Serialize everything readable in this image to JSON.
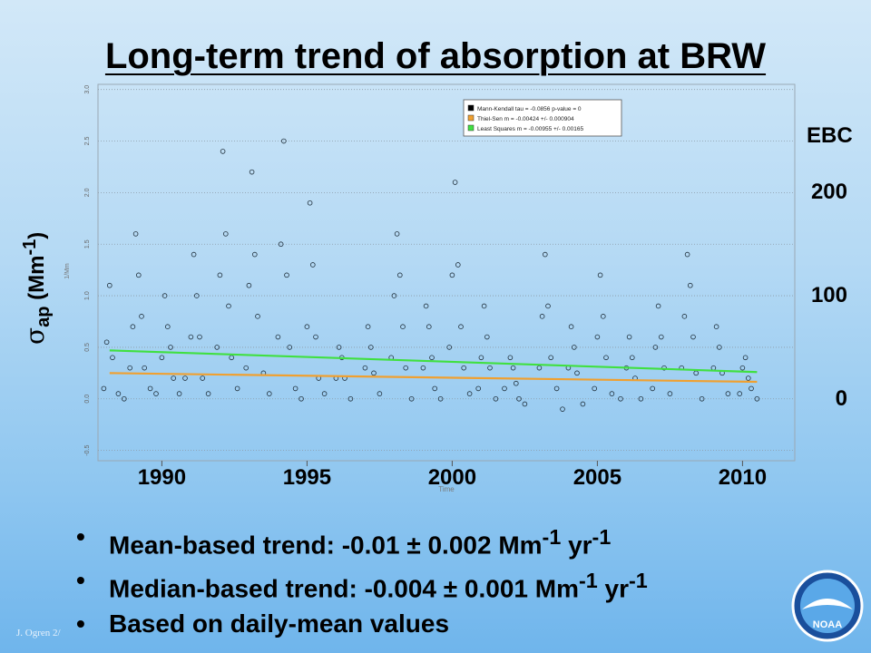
{
  "slide": {
    "title": "Long-term trend of absorption at BRW",
    "footer": "J. Ogren 2/",
    "bullets": [
      {
        "parts": [
          "Mean-based trend:  -0.01 ",
          "±",
          " 0.002 Mm",
          "-1",
          " yr",
          "-1"
        ]
      },
      {
        "parts": [
          "Median-based trend: -0.004 ",
          "±",
          " 0.001 Mm",
          "-1",
          " yr",
          "-1"
        ]
      },
      {
        "parts": [
          "Based on daily-mean values"
        ]
      }
    ],
    "logo_text": "NOAA"
  },
  "ylabel": {
    "symbol": "σ",
    "sub": "ap",
    "unit_open": " (Mm",
    "sup": "-1",
    "unit_close": ")"
  },
  "ebc_axis": {
    "title": "EBC",
    "ticks": [
      "200",
      "100",
      "0"
    ],
    "tick_values": [
      2.0,
      1.0,
      0.0
    ]
  },
  "chart_data": {
    "type": "scatter",
    "title": "",
    "xlabel": "Time",
    "ylabel": "1/Mm",
    "xlim": [
      1987.8,
      2011.8
    ],
    "ylim": [
      -0.6,
      3.05
    ],
    "x_ticks": [
      "1990",
      "1995",
      "2000",
      "2005",
      "2010"
    ],
    "x_tick_values": [
      1990,
      1995,
      2000,
      2005,
      2010
    ],
    "y_ticks": [
      "-0.5",
      "0.0",
      "0.5",
      "1.0",
      "1.5",
      "2.0",
      "2.5",
      "3.0"
    ],
    "y_tick_values": [
      -0.5,
      0.0,
      0.5,
      1.0,
      1.5,
      2.0,
      2.5,
      3.0
    ],
    "grid": true,
    "legend": {
      "position": "top-right",
      "entries": [
        {
          "label": "Mann-Kendall tau = -0.0856 p-value = 0",
          "color": "#000000"
        },
        {
          "label": "Thiel-Sen m = -0.00424 +/- 0.000904",
          "color": "#f0a030"
        },
        {
          "label": "Least Squares m = -0.00955 +/- 0.00165",
          "color": "#40e040"
        }
      ]
    },
    "trend_lines": [
      {
        "name": "Least Squares",
        "color": "#40e040",
        "x": [
          1988.2,
          2010.5
        ],
        "y": [
          0.47,
          0.26
        ]
      },
      {
        "name": "Thiel-Sen",
        "color": "#f0a030",
        "x": [
          1988.2,
          2010.5
        ],
        "y": [
          0.25,
          0.165
        ]
      }
    ],
    "series": [
      {
        "name": "daily-mean absorption",
        "marker": "open-circle",
        "color": "#1e2e3a",
        "x": [
          1988.0,
          1988.1,
          1988.2,
          1988.3,
          1988.5,
          1988.7,
          1988.9,
          1989.0,
          1989.1,
          1989.2,
          1989.3,
          1989.4,
          1989.6,
          1989.8,
          1990.0,
          1990.1,
          1990.2,
          1990.3,
          1990.4,
          1990.6,
          1990.8,
          1991.0,
          1991.1,
          1991.2,
          1991.3,
          1991.4,
          1991.6,
          1991.9,
          1992.0,
          1992.1,
          1992.2,
          1992.3,
          1992.4,
          1992.6,
          1992.9,
          1993.0,
          1993.1,
          1993.2,
          1993.3,
          1993.5,
          1993.7,
          1994.0,
          1994.1,
          1994.2,
          1994.3,
          1994.4,
          1994.6,
          1994.8,
          1995.0,
          1995.1,
          1995.2,
          1995.3,
          1995.4,
          1995.6,
          1996.0,
          1996.1,
          1996.2,
          1996.3,
          1996.5,
          1997.0,
          1997.1,
          1997.2,
          1997.3,
          1997.5,
          1997.9,
          1998.0,
          1998.1,
          1998.2,
          1998.3,
          1998.4,
          1998.6,
          1999.0,
          1999.1,
          1999.2,
          1999.3,
          1999.4,
          1999.6,
          1999.9,
          2000.0,
          2000.1,
          2000.2,
          2000.3,
          2000.4,
          2000.6,
          2000.9,
          2001.0,
          2001.1,
          2001.2,
          2001.3,
          2001.5,
          2001.8,
          2002.0,
          2002.1,
          2002.2,
          2002.3,
          2002.5,
          2003.0,
          2003.1,
          2003.2,
          2003.3,
          2003.4,
          2003.6,
          2003.8,
          2004.0,
          2004.1,
          2004.2,
          2004.3,
          2004.5,
          2004.9,
          2005.0,
          2005.1,
          2005.2,
          2005.3,
          2005.5,
          2005.8,
          2006.0,
          2006.1,
          2006.2,
          2006.3,
          2006.5,
          2006.9,
          2007.0,
          2007.1,
          2007.2,
          2007.3,
          2007.5,
          2007.9,
          2008.0,
          2008.1,
          2008.2,
          2008.3,
          2008.4,
          2008.6,
          2009.0,
          2009.1,
          2009.2,
          2009.3,
          2009.5,
          2009.9,
          2010.0,
          2010.1,
          2010.2,
          2010.3,
          2010.5
        ],
        "y": [
          0.1,
          0.55,
          1.1,
          0.4,
          0.05,
          0.0,
          0.3,
          0.7,
          1.6,
          1.2,
          0.8,
          0.3,
          0.1,
          0.05,
          0.4,
          1.0,
          0.7,
          0.5,
          0.2,
          0.05,
          0.2,
          0.6,
          1.4,
          1.0,
          0.6,
          0.2,
          0.05,
          0.5,
          1.2,
          2.4,
          1.6,
          0.9,
          0.4,
          0.1,
          0.3,
          1.1,
          2.2,
          1.4,
          0.8,
          0.25,
          0.05,
          0.6,
          1.5,
          2.5,
          1.2,
          0.5,
          0.1,
          0.0,
          0.7,
          1.9,
          1.3,
          0.6,
          0.2,
          0.05,
          0.2,
          0.5,
          0.4,
          0.2,
          0.0,
          0.3,
          0.7,
          0.5,
          0.25,
          0.05,
          0.4,
          1.0,
          1.6,
          1.2,
          0.7,
          0.3,
          0.0,
          0.3,
          0.9,
          0.7,
          0.4,
          0.1,
          0.0,
          0.5,
          1.2,
          2.1,
          1.3,
          0.7,
          0.3,
          0.05,
          0.1,
          0.4,
          0.9,
          0.6,
          0.3,
          0.0,
          0.1,
          0.4,
          0.3,
          0.15,
          0.0,
          -0.05,
          0.3,
          0.8,
          1.4,
          0.9,
          0.4,
          0.1,
          -0.1,
          0.3,
          0.7,
          0.5,
          0.25,
          -0.05,
          0.1,
          0.6,
          1.2,
          0.8,
          0.4,
          0.05,
          0.0,
          0.3,
          0.6,
          0.4,
          0.2,
          0.0,
          0.1,
          0.5,
          0.9,
          0.6,
          0.3,
          0.05,
          0.3,
          0.8,
          1.4,
          1.1,
          0.6,
          0.25,
          0.0,
          0.3,
          0.7,
          0.5,
          0.25,
          0.05,
          0.05,
          0.3,
          0.4,
          0.2,
          0.1,
          0.0
        ]
      }
    ]
  }
}
